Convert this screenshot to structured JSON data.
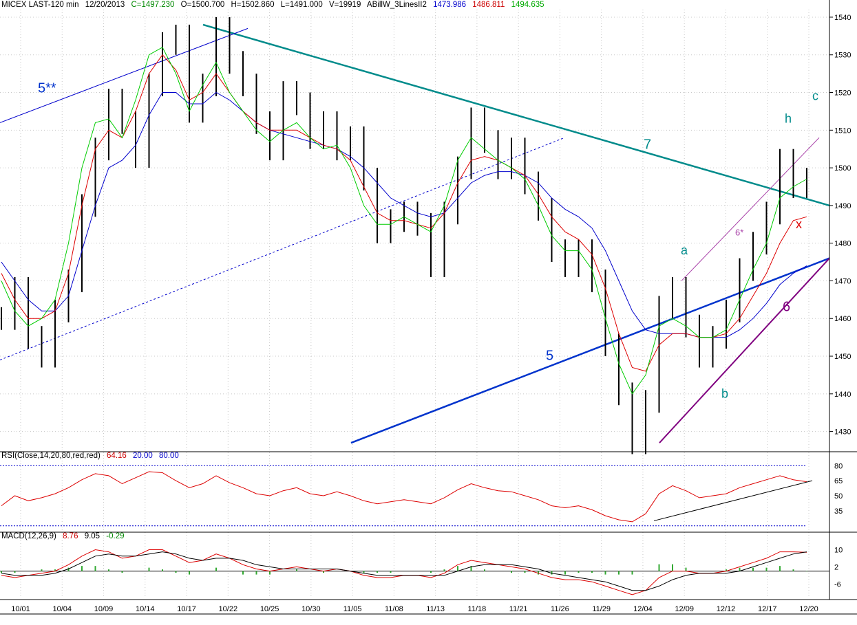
{
  "header": {
    "symbol": "MICEX LAST-120 min",
    "date": "12/20/2013",
    "close": "C=1497.230",
    "open": "O=1500.700",
    "high": "H=1502.860",
    "low": "L=1491.000",
    "volume": "V=19919",
    "indicator": "ABillW_3LinesII2",
    "line1": "1473.986",
    "line2": "1486.811",
    "line3": "1494.635"
  },
  "rsi_header": {
    "label": "RSI(Close,14,20,80,red,red)",
    "value": "64.16",
    "low": "20.00",
    "high": "80.00"
  },
  "macd_header": {
    "label": "MACD(12,26,9)",
    "macd": "8.76",
    "signal": "9.05",
    "hist": "-0.29"
  },
  "annotations": {
    "a": "a",
    "b": "b",
    "c": "c",
    "h": "h",
    "x": "x",
    "six": "6",
    "six_star": "6*",
    "five": "5",
    "five_star": "5**",
    "seven": "7"
  },
  "colors": {
    "green_line": "#00cc00",
    "red_line": "#dd0000",
    "blue_line": "#0000cc",
    "teal_trend": "#008b8b",
    "purple_trend": "#800080",
    "blue_trend": "#0033cc"
  },
  "chart_data": {
    "type": "line",
    "price_axis": {
      "ticks": [
        1430,
        1440,
        1450,
        1460,
        1470,
        1480,
        1490,
        1500,
        1510,
        1520,
        1530,
        1540
      ],
      "ylim": [
        1425,
        1542
      ]
    },
    "rsi_axis": {
      "ticks": [
        35,
        50,
        65,
        80
      ],
      "levels": [
        20,
        80
      ]
    },
    "macd_axis": {
      "ticks": [
        -6,
        2,
        10
      ]
    },
    "x_labels": [
      "10/01",
      "10/04",
      "10/09",
      "10/14",
      "10/17",
      "10/22",
      "10/25",
      "10/30",
      "11/05",
      "11/08",
      "11/13",
      "11/18",
      "11/21",
      "11/26",
      "11/29",
      "12/04",
      "12/09",
      "12/12",
      "12/17",
      "12/20"
    ],
    "price_path": [
      1460,
      1468,
      1455,
      1450,
      1462,
      1470,
      1490,
      1505,
      1518,
      1512,
      1503,
      1522,
      1533,
      1535,
      1515,
      1522,
      1537,
      1528,
      1522,
      1512,
      1505,
      1520,
      1517,
      1508,
      1512,
      1505,
      1508,
      1497,
      1483,
      1486,
      1488,
      1485,
      1474,
      1488,
      1500,
      1513,
      1507,
      1500,
      1505,
      1496,
      1489,
      1478,
      1474,
      1478,
      1470,
      1453,
      1440,
      1427,
      1438,
      1463,
      1468,
      1458,
      1450,
      1455,
      1462,
      1473,
      1480,
      1488,
      1502,
      1495,
      1497
    ],
    "green_path": [
      1470,
      1462,
      1458,
      1460,
      1465,
      1480,
      1500,
      1512,
      1513,
      1508,
      1518,
      1530,
      1532,
      1525,
      1515,
      1522,
      1528,
      1520,
      1515,
      1510,
      1507,
      1510,
      1512,
      1508,
      1505,
      1506,
      1500,
      1490,
      1485,
      1485,
      1487,
      1485,
      1483,
      1490,
      1502,
      1508,
      1505,
      1502,
      1500,
      1497,
      1490,
      1482,
      1478,
      1478,
      1473,
      1460,
      1448,
      1440,
      1445,
      1458,
      1460,
      1458,
      1455,
      1455,
      1457,
      1465,
      1473,
      1480,
      1492,
      1495,
      1497
    ],
    "red_path": [
      1472,
      1465,
      1460,
      1460,
      1462,
      1472,
      1490,
      1505,
      1510,
      1508,
      1515,
      1525,
      1530,
      1526,
      1518,
      1520,
      1525,
      1520,
      1515,
      1512,
      1510,
      1510,
      1510,
      1508,
      1506,
      1505,
      1502,
      1495,
      1488,
      1486,
      1486,
      1485,
      1484,
      1488,
      1496,
      1502,
      1503,
      1502,
      1500,
      1498,
      1493,
      1487,
      1483,
      1481,
      1477,
      1468,
      1456,
      1447,
      1446,
      1453,
      1456,
      1456,
      1455,
      1455,
      1456,
      1460,
      1466,
      1472,
      1480,
      1486,
      1487
    ],
    "blue_path": [
      1475,
      1470,
      1465,
      1462,
      1462,
      1466,
      1478,
      1490,
      1500,
      1502,
      1506,
      1514,
      1520,
      1520,
      1517,
      1517,
      1520,
      1518,
      1515,
      1512,
      1510,
      1509,
      1508,
      1507,
      1506,
      1505,
      1503,
      1500,
      1496,
      1492,
      1490,
      1488,
      1487,
      1488,
      1492,
      1496,
      1498,
      1499,
      1499,
      1498,
      1496,
      1492,
      1489,
      1487,
      1484,
      1478,
      1470,
      1462,
      1457,
      1456,
      1456,
      1456,
      1455,
      1455,
      1455,
      1457,
      1460,
      1464,
      1469,
      1472,
      1474
    ],
    "rsi_path": [
      40,
      50,
      45,
      48,
      52,
      58,
      66,
      72,
      70,
      62,
      68,
      74,
      73,
      65,
      58,
      62,
      70,
      63,
      58,
      52,
      50,
      55,
      58,
      52,
      50,
      54,
      50,
      45,
      42,
      44,
      46,
      44,
      42,
      48,
      56,
      62,
      58,
      55,
      54,
      50,
      46,
      40,
      38,
      40,
      36,
      30,
      26,
      24,
      32,
      52,
      60,
      55,
      48,
      50,
      52,
      58,
      62,
      66,
      70,
      66,
      64
    ],
    "macd_path": [
      -2,
      -3,
      -2,
      -1,
      0,
      3,
      7,
      10,
      9,
      6,
      7,
      10,
      10,
      7,
      4,
      5,
      8,
      6,
      3,
      1,
      0,
      1,
      2,
      1,
      0,
      1,
      0,
      -2,
      -3,
      -3,
      -2,
      -2,
      -3,
      -1,
      3,
      5,
      4,
      3,
      2,
      1,
      -1,
      -3,
      -4,
      -4,
      -5,
      -7,
      -9,
      -11,
      -9,
      -3,
      0,
      0,
      -1,
      -1,
      0,
      2,
      4,
      6,
      9,
      9,
      8.8
    ],
    "signal_path": [
      -1,
      -2,
      -2,
      -2,
      -1,
      1,
      4,
      7,
      8,
      7,
      7,
      8,
      9,
      8,
      6,
      5,
      6,
      6,
      5,
      3,
      2,
      1,
      1,
      1,
      1,
      1,
      0,
      -1,
      -2,
      -2,
      -2,
      -2,
      -2,
      -2,
      0,
      2,
      3,
      3,
      3,
      2,
      1,
      -1,
      -2,
      -3,
      -4,
      -5,
      -7,
      -9,
      -9,
      -7,
      -4,
      -2,
      -1,
      -1,
      -1,
      0,
      2,
      4,
      6,
      8,
      9
    ]
  }
}
